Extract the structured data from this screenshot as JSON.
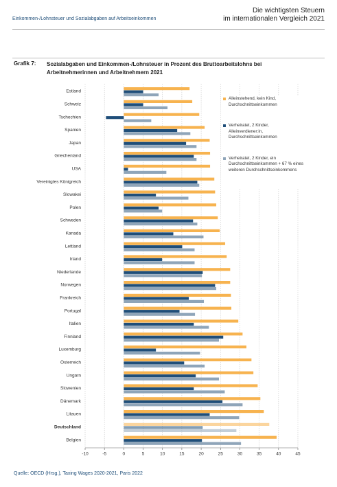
{
  "header": {
    "section": "Einkommen-/Lohnsteuer und Sozialabgaben auf Arbeitseinkommen",
    "title": [
      "Die wichtigsten Steuern",
      "im internationalen Vergleich 2021"
    ]
  },
  "source": "Quelle: OECD (Hrsg.), Taxing Wages 2020-2021, Paris 2022",
  "chart_data": {
    "type": "hbar",
    "figure_label": "Grafik 7:",
    "title": "Sozialabgaben und Einkommen-/Lohnsteuer in Prozent des Bruttoarbeitslohns bei Arbeitnehmerinnen und Arbeitnehmern 2021",
    "categories": [
      "Estland",
      "Schweiz",
      "Tschechien",
      "Spanien",
      "Japan",
      "Griechenland",
      "USA",
      "Vereinigtes Königreich",
      "Slowakei",
      "Polen",
      "Schweden",
      "Kanada",
      "Lettland",
      "Irland",
      "Niederlande",
      "Norwegen",
      "Frankreich",
      "Portugal",
      "Italien",
      "Finnland",
      "Luxemburg",
      "Österreich",
      "Ungarn",
      "Slowenien",
      "Dänemark",
      "Litauen",
      "Deutschland",
      "Belgien"
    ],
    "series": [
      {
        "name": "Alleinstehend, kein Kind, Durchschnittseinkommen",
        "color": "#f7b34f",
        "values": [
          17.0,
          17.7,
          19.5,
          20.9,
          22.2,
          22.3,
          22.3,
          23.4,
          23.6,
          23.9,
          24.3,
          24.8,
          26.2,
          26.6,
          27.5,
          27.5,
          27.7,
          27.8,
          29.6,
          30.7,
          31.7,
          33.0,
          33.5,
          34.6,
          35.3,
          36.2,
          37.6,
          39.5
        ]
      },
      {
        "name": "Verheiratet, 2 Kinder, Alleinverdiener:in, Durchschnittseinkommen",
        "color": "#1f4e79",
        "values": [
          5.0,
          5.0,
          -4.6,
          13.8,
          16.1,
          18.1,
          1.1,
          19.0,
          8.3,
          9.0,
          17.9,
          12.8,
          15.1,
          9.9,
          20.4,
          23.6,
          16.8,
          14.4,
          18.1,
          25.7,
          8.3,
          15.6,
          18.6,
          18.1,
          25.5,
          22.2,
          20.4,
          20.2
        ]
      },
      {
        "name": "Verheiratet, 2 Kinder, ein Durchschnittseinkommen + 67 % eines weiteren Durchschnittseinkommens",
        "color": "#8fa5b9",
        "values": [
          9.0,
          11.3,
          7.1,
          17.2,
          18.8,
          18.8,
          11.0,
          19.5,
          16.7,
          9.9,
          19.0,
          20.6,
          18.3,
          18.3,
          20.2,
          23.9,
          20.7,
          18.4,
          22.0,
          24.6,
          19.7,
          20.9,
          24.6,
          26.1,
          30.7,
          29.8,
          29.1,
          30.3
        ]
      }
    ],
    "xlim": [
      -10,
      45
    ],
    "xticks": [
      -10,
      -5,
      0,
      5,
      10,
      15,
      20,
      25,
      30,
      35,
      40,
      45
    ],
    "grid": true
  }
}
